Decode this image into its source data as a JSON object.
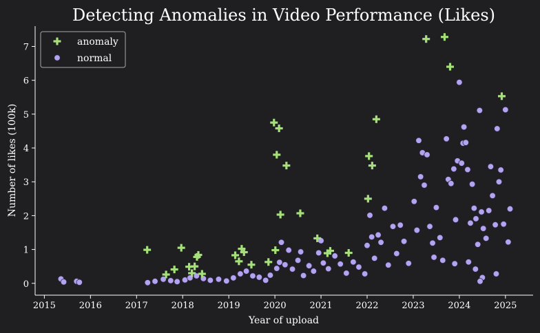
{
  "chart_data": {
    "type": "scatter",
    "title": "Detecting Anomalies in Video Performance (Likes)",
    "xlabel": "Year of upload",
    "ylabel": "Number of likes (100k)",
    "xlim": [
      2014.8,
      2025.6
    ],
    "ylim": [
      -0.35,
      7.6
    ],
    "xticks": [
      "2015",
      "2016",
      "2017",
      "2018",
      "2019",
      "2020",
      "2021",
      "2022",
      "2023",
      "2024",
      "2025"
    ],
    "yticks": [
      "0",
      "1",
      "2",
      "3",
      "4",
      "5",
      "6",
      "7"
    ],
    "grid": false,
    "legend_position": "top-left",
    "colors": {
      "background": "#1f1e21",
      "anomaly": "#a6e07a",
      "normal": "#b3a3f0",
      "normal_edge": "#2a2740",
      "text": "#ffffff"
    },
    "series": [
      {
        "name": "anomaly",
        "marker": "plus",
        "points": [
          [
            2017.23,
            0.99
          ],
          [
            2017.64,
            0.26
          ],
          [
            2017.82,
            0.41
          ],
          [
            2017.97,
            1.05
          ],
          [
            2018.14,
            0.49
          ],
          [
            2018.2,
            0.3
          ],
          [
            2018.26,
            0.5
          ],
          [
            2018.31,
            0.78
          ],
          [
            2018.34,
            0.84
          ],
          [
            2018.42,
            0.28
          ],
          [
            2019.14,
            0.83
          ],
          [
            2019.22,
            0.65
          ],
          [
            2019.28,
            1.02
          ],
          [
            2019.33,
            0.92
          ],
          [
            2019.49,
            0.55
          ],
          [
            2019.86,
            0.63
          ],
          [
            2019.98,
            4.75
          ],
          [
            2020.01,
            0.98
          ],
          [
            2020.04,
            3.8
          ],
          [
            2020.09,
            4.58
          ],
          [
            2020.12,
            2.03
          ],
          [
            2020.25,
            3.48
          ],
          [
            2020.55,
            2.07
          ],
          [
            2020.92,
            1.33
          ],
          [
            2021.14,
            0.89
          ],
          [
            2021.2,
            0.96
          ],
          [
            2021.6,
            0.9
          ],
          [
            2022.02,
            2.5
          ],
          [
            2022.04,
            3.76
          ],
          [
            2022.11,
            3.48
          ],
          [
            2022.2,
            4.85
          ],
          [
            2023.28,
            7.22
          ],
          [
            2023.68,
            7.28
          ],
          [
            2023.8,
            6.4
          ],
          [
            2024.92,
            5.53
          ]
        ]
      },
      {
        "name": "normal",
        "marker": "circle",
        "points": [
          [
            2015.36,
            0.13
          ],
          [
            2015.42,
            0.04
          ],
          [
            2015.7,
            0.06
          ],
          [
            2015.76,
            0.03
          ],
          [
            2017.24,
            0.02
          ],
          [
            2017.4,
            0.06
          ],
          [
            2017.58,
            0.12
          ],
          [
            2017.74,
            0.08
          ],
          [
            2017.88,
            0.05
          ],
          [
            2018.05,
            0.1
          ],
          [
            2018.16,
            0.16
          ],
          [
            2018.3,
            0.22
          ],
          [
            2018.45,
            0.14
          ],
          [
            2018.6,
            0.09
          ],
          [
            2018.78,
            0.12
          ],
          [
            2018.95,
            0.07
          ],
          [
            2019.1,
            0.16
          ],
          [
            2019.25,
            0.28
          ],
          [
            2019.38,
            0.36
          ],
          [
            2019.52,
            0.22
          ],
          [
            2019.66,
            0.18
          ],
          [
            2019.8,
            0.09
          ],
          [
            2019.9,
            0.24
          ],
          [
            2020.04,
            0.44
          ],
          [
            2020.1,
            0.62
          ],
          [
            2020.14,
            1.21
          ],
          [
            2020.22,
            0.55
          ],
          [
            2020.3,
            0.98
          ],
          [
            2020.38,
            0.42
          ],
          [
            2020.5,
            0.68
          ],
          [
            2020.56,
            0.93
          ],
          [
            2020.62,
            0.23
          ],
          [
            2020.74,
            0.52
          ],
          [
            2020.84,
            0.36
          ],
          [
            2020.95,
            0.9
          ],
          [
            2021.0,
            1.26
          ],
          [
            2021.05,
            0.6
          ],
          [
            2021.16,
            0.43
          ],
          [
            2021.3,
            0.81
          ],
          [
            2021.42,
            0.57
          ],
          [
            2021.55,
            0.3
          ],
          [
            2021.7,
            0.63
          ],
          [
            2021.82,
            0.48
          ],
          [
            2021.95,
            0.28
          ],
          [
            2022.0,
            1.12
          ],
          [
            2022.06,
            2.01
          ],
          [
            2022.1,
            1.37
          ],
          [
            2022.16,
            0.74
          ],
          [
            2022.24,
            1.43
          ],
          [
            2022.3,
            1.21
          ],
          [
            2022.38,
            2.22
          ],
          [
            2022.46,
            0.54
          ],
          [
            2022.56,
            1.68
          ],
          [
            2022.64,
            0.88
          ],
          [
            2022.72,
            1.72
          ],
          [
            2022.8,
            1.24
          ],
          [
            2022.9,
            0.59
          ],
          [
            2023.02,
            2.42
          ],
          [
            2023.08,
            1.57
          ],
          [
            2023.12,
            4.22
          ],
          [
            2023.16,
            3.15
          ],
          [
            2023.2,
            3.86
          ],
          [
            2023.24,
            2.9
          ],
          [
            2023.3,
            3.8
          ],
          [
            2023.36,
            1.68
          ],
          [
            2023.42,
            1.19
          ],
          [
            2023.5,
            2.24
          ],
          [
            2023.58,
            1.35
          ],
          [
            2023.64,
            0.68
          ],
          [
            2023.72,
            4.27
          ],
          [
            2023.76,
            3.07
          ],
          [
            2023.82,
            2.95
          ],
          [
            2023.88,
            3.38
          ],
          [
            2023.92,
            1.88
          ],
          [
            2023.96,
            3.62
          ],
          [
            2024.0,
            5.94
          ],
          [
            2024.05,
            3.55
          ],
          [
            2024.08,
            4.14
          ],
          [
            2024.1,
            4.62
          ],
          [
            2024.14,
            4.16
          ],
          [
            2024.18,
            3.36
          ],
          [
            2024.24,
            1.78
          ],
          [
            2024.28,
            2.93
          ],
          [
            2024.32,
            2.22
          ],
          [
            2024.36,
            1.91
          ],
          [
            2024.4,
            1.15
          ],
          [
            2024.44,
            5.11
          ],
          [
            2024.48,
            2.11
          ],
          [
            2024.52,
            1.62
          ],
          [
            2024.58,
            1.33
          ],
          [
            2024.64,
            2.15
          ],
          [
            2024.68,
            3.45
          ],
          [
            2024.72,
            2.59
          ],
          [
            2024.78,
            1.73
          ],
          [
            2024.82,
            4.57
          ],
          [
            2024.86,
            3.0
          ],
          [
            2024.9,
            3.35
          ],
          [
            2024.96,
            1.75
          ],
          [
            2025.0,
            5.13
          ],
          [
            2025.06,
            1.22
          ],
          [
            2025.1,
            2.2
          ],
          [
            2024.35,
            0.42
          ],
          [
            2024.5,
            0.17
          ],
          [
            2024.2,
            0.63
          ],
          [
            2024.8,
            0.28
          ],
          [
            2024.45,
            0.06
          ],
          [
            2023.9,
            0.58
          ],
          [
            2023.45,
            0.77
          ]
        ]
      }
    ]
  }
}
